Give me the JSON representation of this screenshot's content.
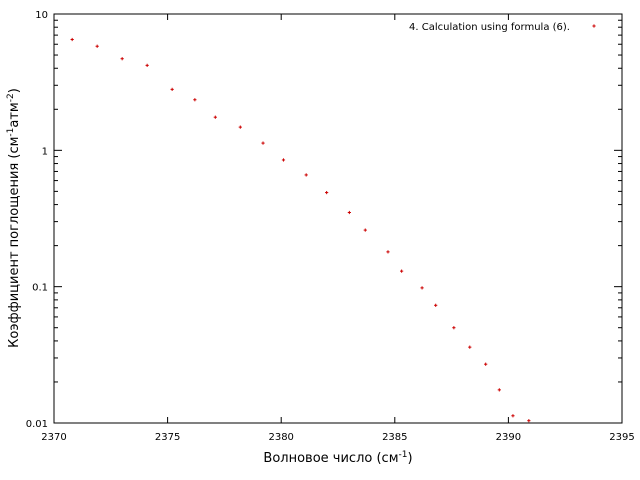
{
  "chart_data": {
    "type": "scatter",
    "title": "",
    "xlabel": {
      "base": "Волновое число (см",
      "sup": "-1",
      "tail": ")"
    },
    "ylabel": {
      "base": "Коэффициент поглощения (см",
      "sup1": "-1",
      "mid": "атм",
      "sup2": "-2",
      "tail": ")"
    },
    "xlim": [
      2370,
      2395
    ],
    "ylim": [
      0.01,
      10
    ],
    "yscale": "log",
    "grid": false,
    "legend_position": "top-right",
    "marker_color": "#cc0000",
    "xticks": [
      "2370",
      "2375",
      "2380",
      "2385",
      "2390",
      "2395"
    ],
    "yticks": [
      "0.01",
      "0.1",
      "1",
      "10"
    ],
    "series": [
      {
        "name": "4. Calculation using formula (6).",
        "x": [
          2370.8,
          2371.9,
          2373.0,
          2374.1,
          2375.2,
          2376.2,
          2377.1,
          2378.2,
          2379.2,
          2380.1,
          2381.1,
          2382.0,
          2383.0,
          2383.7,
          2384.7,
          2385.3,
          2386.2,
          2386.8,
          2387.6,
          2388.3,
          2389.0,
          2389.6,
          2390.2,
          2390.9
        ],
        "y": [
          6.5,
          5.8,
          4.7,
          4.2,
          2.8,
          2.35,
          1.75,
          1.48,
          1.13,
          0.85,
          0.66,
          0.49,
          0.35,
          0.26,
          0.18,
          0.13,
          0.098,
          0.073,
          0.05,
          0.036,
          0.027,
          0.0175,
          0.0113,
          0.0104
        ]
      }
    ]
  }
}
